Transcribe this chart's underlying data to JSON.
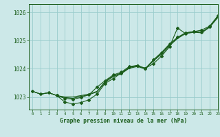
{
  "title": "Graphe pression niveau de la mer (hPa)",
  "background_color": "#cce8e8",
  "grid_color": "#99cccc",
  "line_color": "#1a5c1a",
  "xlim": [
    -0.5,
    23
  ],
  "ylim": [
    1022.55,
    1026.3
  ],
  "yticks": [
    1023,
    1024,
    1025,
    1026
  ],
  "ytick_labels": [
    "1023",
    "1024",
    "1025",
    "1026"
  ],
  "xticks": [
    0,
    1,
    2,
    3,
    4,
    5,
    6,
    7,
    8,
    9,
    10,
    11,
    12,
    13,
    14,
    15,
    16,
    17,
    18,
    19,
    20,
    21,
    22,
    23
  ],
  "series_smooth1_x": [
    0,
    1,
    2,
    3,
    4,
    5,
    6,
    7,
    8,
    9,
    10,
    11,
    12,
    13,
    14,
    15,
    16,
    17,
    18,
    19,
    20,
    21,
    22,
    23
  ],
  "series_smooth1_y": [
    1023.2,
    1023.1,
    1023.15,
    1023.05,
    1023.0,
    1023.0,
    1023.05,
    1023.1,
    1023.2,
    1023.55,
    1023.75,
    1023.85,
    1024.05,
    1024.1,
    1024.02,
    1024.3,
    1024.55,
    1024.85,
    1025.1,
    1025.28,
    1025.32,
    1025.3,
    1025.5,
    1025.85
  ],
  "series_smooth2_x": [
    0,
    1,
    2,
    3,
    4,
    5,
    6,
    7,
    8,
    9,
    10,
    11,
    12,
    13,
    14,
    15,
    16,
    17,
    18,
    19,
    20,
    21,
    22,
    23
  ],
  "series_smooth2_y": [
    1023.2,
    1023.1,
    1023.15,
    1023.05,
    1022.98,
    1022.95,
    1023.02,
    1023.08,
    1023.18,
    1023.52,
    1023.72,
    1023.82,
    1024.02,
    1024.08,
    1024.0,
    1024.28,
    1024.52,
    1024.82,
    1025.08,
    1025.25,
    1025.3,
    1025.28,
    1025.48,
    1025.82
  ],
  "series_marker1_x": [
    0,
    1,
    2,
    3,
    4,
    5,
    6,
    7,
    8,
    9,
    10,
    11,
    12,
    13,
    14,
    15,
    16,
    17,
    18,
    19,
    20,
    21,
    22,
    23
  ],
  "series_marker1_y": [
    1023.2,
    1023.1,
    1023.15,
    1023.05,
    1022.95,
    1022.92,
    1022.98,
    1023.08,
    1023.35,
    1023.58,
    1023.78,
    1023.88,
    1024.08,
    1024.12,
    1024.0,
    1024.32,
    1024.58,
    1024.88,
    1025.12,
    1025.28,
    1025.32,
    1025.3,
    1025.5,
    1025.88
  ],
  "series_marker2_x": [
    3,
    4,
    5,
    6,
    7,
    8,
    9,
    10,
    11,
    12,
    13,
    14,
    15,
    16,
    17,
    18,
    19,
    20,
    21,
    22,
    23
  ],
  "series_marker2_y": [
    1023.05,
    1022.82,
    1022.75,
    1022.8,
    1022.9,
    1023.1,
    1023.48,
    1023.65,
    1023.85,
    1024.05,
    1024.12,
    1024.02,
    1024.18,
    1024.45,
    1024.78,
    1025.45,
    1025.25,
    1025.32,
    1025.38,
    1025.52,
    1025.88
  ]
}
